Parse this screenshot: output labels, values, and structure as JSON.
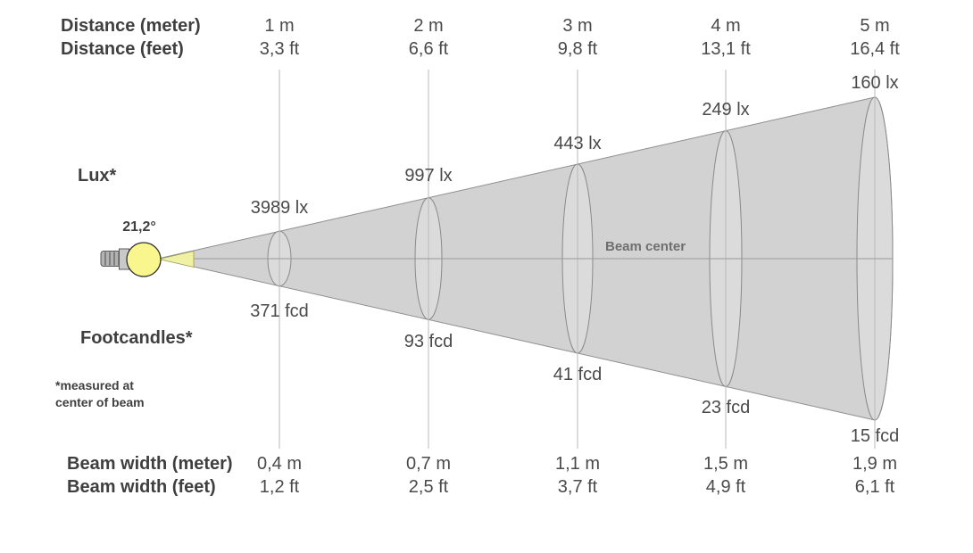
{
  "colors": {
    "bg": "#ffffff",
    "cone_fill": "#d2d2d2",
    "cone_stroke": "#8f8f8f",
    "ellipse_fill": "#dbdbdb",
    "ellipse_stroke": "#8a8a8a",
    "grid_line": "#b8b8b8",
    "center_line": "#9a9a9a",
    "bulb_fill": "#f9f68d",
    "bulb_stroke": "#2f2f2f",
    "wedge_fill": "#f0f1a3",
    "wedge_stroke": "#9c9c54",
    "base_fill": "#b3b3b3",
    "base_stroke": "#5a5a5a",
    "neck_fill": "#c9c9c9",
    "text_dark": "#3f3f3f",
    "text_value": "#4a4a4a",
    "beam_center_text": "#6e6e6e"
  },
  "header": {
    "distance_meter_label": "Distance (meter)",
    "distance_feet_label": "Distance (feet)"
  },
  "side_labels": {
    "lux_label": "Lux*",
    "footcandles_label": "Footcandles*",
    "footnote_line1": "*measured at",
    "footnote_line2": "center of beam",
    "beam_angle": "21,2°",
    "beam_center_label": "Beam center"
  },
  "footer": {
    "beam_width_meter_label": "Beam width (meter)",
    "beam_width_feet_label": "Beam width (feet)"
  },
  "chart_data": {
    "type": "beam-cone-diagram",
    "beam_angle_degrees": "21,2°",
    "columns": [
      {
        "distance_m": "1 m",
        "distance_ft": "3,3 ft",
        "lux": "3989 lx",
        "footcandles": "371 fcd",
        "beam_width_m": "0,4 m",
        "beam_width_ft": "1,2 ft"
      },
      {
        "distance_m": "2 m",
        "distance_ft": "6,6 ft",
        "lux": "997 lx",
        "footcandles": "93 fcd",
        "beam_width_m": "0,7 m",
        "beam_width_ft": "2,5 ft"
      },
      {
        "distance_m": "3 m",
        "distance_ft": "9,8 ft",
        "lux": "443 lx",
        "footcandles": "41 fcd",
        "beam_width_m": "1,1 m",
        "beam_width_ft": "3,7 ft"
      },
      {
        "distance_m": "4 m",
        "distance_ft": "13,1 ft",
        "lux": "249 lx",
        "footcandles": "23 fcd",
        "beam_width_m": "1,5 m",
        "beam_width_ft": "4,9 ft"
      },
      {
        "distance_m": "5 m",
        "distance_ft": "16,4 ft",
        "lux": "160 lx",
        "footcandles": "15 fcd",
        "beam_width_m": "1,9 m",
        "beam_width_ft": "6,1 ft"
      }
    ]
  }
}
